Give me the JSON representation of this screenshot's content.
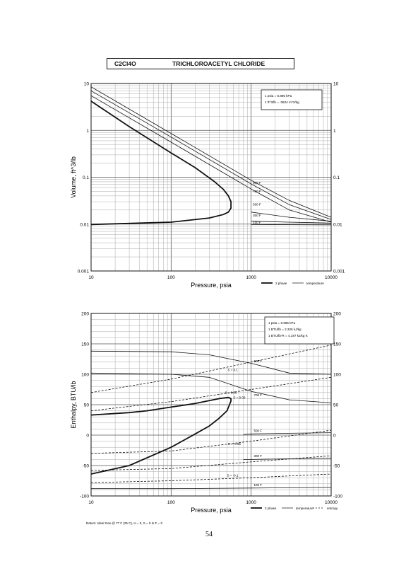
{
  "header": {
    "formula": "C2Cl4O",
    "name": "TRICHLOROACETYL CHLORIDE"
  },
  "page_number": "54",
  "datum_note": "Datum: Ideal Gas @ 77 F (25 C), H = 0, S = 0 In F = 0",
  "chart_data": [
    {
      "type": "line",
      "xlabel": "Pressure,  psia",
      "ylabel": "Volume, ft^3/lb",
      "x_scale": "log",
      "y_scale": "log",
      "xlim": [
        10,
        10000
      ],
      "ylim": [
        0.001,
        10
      ],
      "x_ticks": [
        "10",
        "100",
        "1000",
        "10000"
      ],
      "y_ticks_left": [
        "10",
        "1",
        "0.1",
        "0.01",
        "0.001"
      ],
      "y_ticks_right": [
        "10",
        "1",
        "0.1",
        "0.01",
        "0.001"
      ],
      "grid": true,
      "legend_position": "bottom-right",
      "legend": [
        "2 phase",
        "temperature"
      ],
      "conversion_box": [
        "1 psia = 6.895 kPa",
        "1 ft^3/lb = .0624 m^3/kg"
      ],
      "series": [
        {
          "name": "2 phase",
          "style": "thick",
          "x": [
            10,
            30,
            100,
            200,
            350,
            450,
            520,
            560,
            560,
            520,
            450,
            300,
            100,
            10
          ],
          "y": [
            4.2,
            1.2,
            0.33,
            0.16,
            0.08,
            0.055,
            0.04,
            0.03,
            0.022,
            0.018,
            0.016,
            0.0135,
            0.011,
            0.0098
          ]
        },
        {
          "label": "500 F",
          "x": [
            10,
            100,
            1000,
            3000,
            10000
          ],
          "y": [
            5.5,
            0.56,
            0.056,
            0.02,
            0.011
          ]
        },
        {
          "label": "700 F",
          "x": [
            10,
            100,
            1000,
            3000,
            10000
          ],
          "y": [
            7.0,
            0.72,
            0.072,
            0.026,
            0.0125
          ]
        },
        {
          "label": "900 F",
          "x": [
            10,
            100,
            1000,
            3000,
            10000
          ],
          "y": [
            8.5,
            0.86,
            0.086,
            0.032,
            0.014
          ]
        },
        {
          "label": "500 F",
          "x": [
            1000,
            3000,
            10000
          ],
          "y": [
            0.018,
            0.014,
            0.0115
          ]
        },
        {
          "label": "300 F",
          "x": [
            1000,
            3000,
            10000
          ],
          "y": [
            0.0115,
            0.011,
            0.0105
          ]
        },
        {
          "label": "100 F",
          "x": [
            1000,
            3000,
            10000
          ],
          "y": [
            0.0098,
            0.0097,
            0.0096
          ]
        }
      ],
      "curve_labels": [
        "900 F",
        "700 F",
        "500 F",
        "300 F",
        "100 F"
      ]
    },
    {
      "type": "line",
      "xlabel": "Pressure,  psia",
      "ylabel": "Enthalpy, BTU/lb",
      "x_scale": "log",
      "xlim": [
        10,
        10000
      ],
      "ylim": [
        -100,
        200
      ],
      "x_ticks": [
        "10",
        "100",
        "1000",
        "10000"
      ],
      "y_ticks_left": [
        "200",
        "150",
        "100",
        "50",
        "0",
        "-50",
        "-100"
      ],
      "y_ticks_right": [
        "200",
        "150",
        "100",
        "50",
        "0",
        "-50",
        "-100"
      ],
      "grid": true,
      "legend_position": "bottom-right",
      "legend": [
        "2 phase",
        "temperature",
        "entropy"
      ],
      "conversion_box": [
        "1 psia = 6.895 kPa",
        "1 BTU/lb = 2.326 kJ/kg",
        "1 BTU/lb-R = 4.187 kJ/kg K"
      ],
      "series": [
        {
          "name": "2 phase",
          "style": "thick",
          "x": [
            10,
            30,
            100,
            200,
            300,
            400,
            500,
            560,
            560,
            520,
            400,
            200,
            100,
            50,
            30,
            10
          ],
          "y": [
            -64,
            -50,
            -20,
            2,
            15,
            28,
            40,
            56,
            60,
            62,
            60,
            52,
            46,
            40,
            37,
            33
          ]
        },
        {
          "label": "900 F",
          "x": [
            10,
            100,
            300,
            1000,
            3000,
            10000
          ],
          "y": [
            138,
            137,
            132,
            118,
            102,
            100
          ]
        },
        {
          "label": "700 F",
          "x": [
            10,
            100,
            300,
            1000,
            3000,
            10000
          ],
          "y": [
            102,
            100,
            95,
            72,
            58,
            53
          ]
        },
        {
          "label": "500 F",
          "x": [
            800,
            1000,
            3000,
            10000
          ],
          "y": [
            1,
            2,
            3,
            4
          ]
        },
        {
          "label": "300 F",
          "x": [
            800,
            1000,
            3000,
            10000
          ],
          "y": [
            -40,
            -40,
            -39,
            -38
          ]
        },
        {
          "label": "100 F",
          "x": [
            10,
            100,
            1000,
            10000
          ],
          "y": [
            -88,
            -88,
            -87,
            -86
          ]
        },
        {
          "label": "S = 0.1",
          "style": "dashed",
          "x": [
            10,
            100,
            1000,
            10000
          ],
          "y": [
            70,
            92,
            120,
            148
          ]
        },
        {
          "label": "S = 0.05",
          "style": "dashed",
          "x": [
            10,
            100,
            1000,
            10000
          ],
          "y": [
            40,
            55,
            75,
            95
          ]
        },
        {
          "label": "S = 0.00",
          "style": "dashed",
          "x": [
            10,
            100,
            1000,
            10000
          ],
          "y": [
            -30,
            -26,
            -10,
            8
          ]
        },
        {
          "label": "S = -0.05",
          "style": "dashed",
          "x": [
            10,
            100,
            1000,
            10000
          ],
          "y": [
            -58,
            -55,
            -44,
            -34
          ]
        },
        {
          "label": "S = -0.1",
          "style": "dashed",
          "x": [
            10,
            100,
            1000,
            10000
          ],
          "y": [
            -78,
            -75,
            -70,
            -64
          ]
        }
      ],
      "curve_labels": [
        "900 F",
        "700 F",
        "500 F",
        "300 F",
        "100 F",
        "S = 0.1",
        "S = 0.05",
        "S = 0.00",
        "S = -0.05",
        "S = -0.1"
      ]
    }
  ]
}
